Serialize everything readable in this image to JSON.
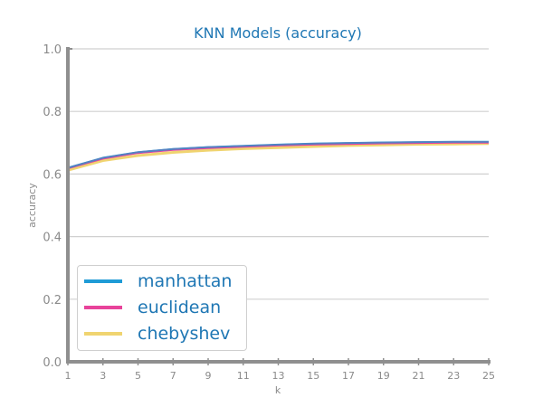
{
  "chart_data": {
    "type": "line",
    "title": "KNN Models (accuracy)",
    "xlabel": "k",
    "ylabel": "accuracy",
    "x": [
      1,
      3,
      5,
      7,
      9,
      11,
      13,
      15,
      17,
      19,
      21,
      23,
      25
    ],
    "xticks": [
      "1",
      "3",
      "5",
      "7",
      "9",
      "11",
      "13",
      "15",
      "17",
      "19",
      "21",
      "23",
      "25"
    ],
    "yticks": [
      "0.0",
      "0.2",
      "0.4",
      "0.6",
      "0.8",
      "1.0"
    ],
    "xlim": [
      1,
      25
    ],
    "ylim": [
      0,
      1
    ],
    "grid": "horizontal",
    "legend_position": "bottom-left",
    "series": [
      {
        "name": "manhattan",
        "color": "#1f9bd6",
        "values": [
          0.62,
          0.652,
          0.67,
          0.68,
          0.686,
          0.69,
          0.694,
          0.697,
          0.699,
          0.701,
          0.702,
          0.703,
          0.703
        ]
      },
      {
        "name": "euclidean",
        "color": "#e8439a",
        "values": [
          0.618,
          0.649,
          0.667,
          0.677,
          0.683,
          0.687,
          0.691,
          0.694,
          0.696,
          0.698,
          0.699,
          0.7,
          0.7
        ]
      },
      {
        "name": "chebyshev",
        "color": "#f0d470",
        "values": [
          0.612,
          0.643,
          0.659,
          0.669,
          0.676,
          0.681,
          0.684,
          0.688,
          0.691,
          0.693,
          0.695,
          0.696,
          0.697
        ]
      }
    ]
  }
}
